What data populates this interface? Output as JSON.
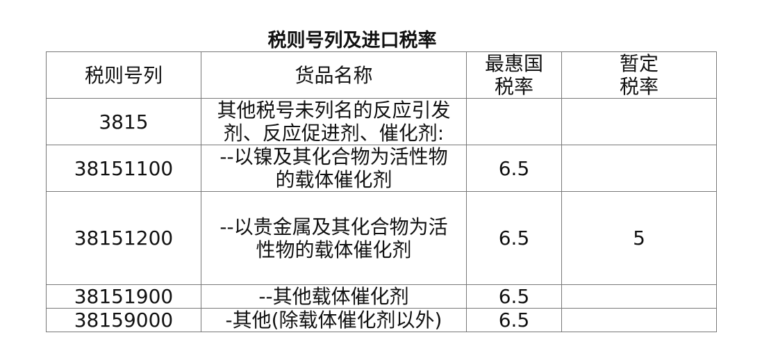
{
  "title": "税则号列及进口税率",
  "headers": {
    "code": "税则号列",
    "name": "货品名称",
    "mfn": [
      "最惠国",
      "税率"
    ],
    "provisional": [
      "暂定",
      "税率"
    ]
  },
  "rows": [
    {
      "code": "3815",
      "name": [
        "其他税号未列名的反应引发",
        "剂、反应促进剂、催化剂:"
      ],
      "mfn": "",
      "provisional": ""
    },
    {
      "code": "38151100",
      "name": [
        "--以镍及其化合物为活性物",
        "的载体催化剂"
      ],
      "mfn": "6.5",
      "provisional": ""
    },
    {
      "code": "38151200",
      "name": [
        "--以贵金属及其化合物为活",
        "性物的载体催化剂"
      ],
      "mfn": "6.5",
      "provisional": "5"
    },
    {
      "code": "38151900",
      "name": [
        "--其他载体催化剂"
      ],
      "mfn": "6.5",
      "provisional": ""
    },
    {
      "code": "38159000",
      "name": [
        "-其他(除载体催化剂以外)"
      ],
      "mfn": "6.5",
      "provisional": ""
    }
  ]
}
